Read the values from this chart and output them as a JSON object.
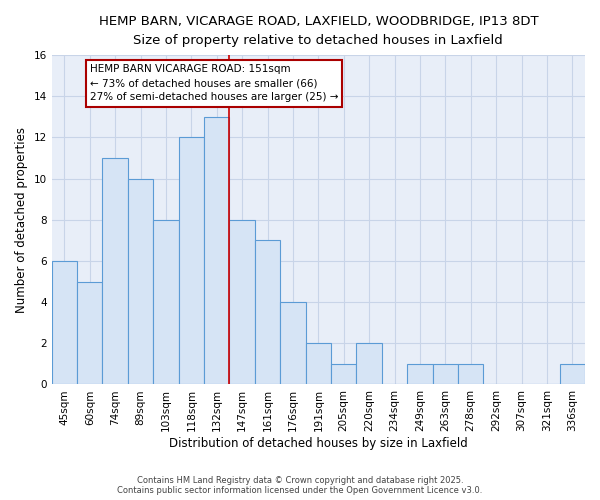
{
  "title1": "HEMP BARN, VICARAGE ROAD, LAXFIELD, WOODBRIDGE, IP13 8DT",
  "title2": "Size of property relative to detached houses in Laxfield",
  "xlabel": "Distribution of detached houses by size in Laxfield",
  "ylabel": "Number of detached properties",
  "categories": [
    "45sqm",
    "60sqm",
    "74sqm",
    "89sqm",
    "103sqm",
    "118sqm",
    "132sqm",
    "147sqm",
    "161sqm",
    "176sqm",
    "191sqm",
    "205sqm",
    "220sqm",
    "234sqm",
    "249sqm",
    "263sqm",
    "278sqm",
    "292sqm",
    "307sqm",
    "321sqm",
    "336sqm"
  ],
  "values": [
    6,
    5,
    11,
    10,
    8,
    12,
    13,
    8,
    7,
    4,
    2,
    1,
    2,
    0,
    1,
    1,
    1,
    0,
    0,
    0,
    1
  ],
  "bar_color": "#d6e4f5",
  "bar_edge_color": "#5b9bd5",
  "highlight_index": 7,
  "highlight_line_color": "#cc0000",
  "annotation_text": "HEMP BARN VICARAGE ROAD: 151sqm\n← 73% of detached houses are smaller (66)\n27% of semi-detached houses are larger (25) →",
  "annotation_box_facecolor": "#ffffff",
  "annotation_box_edgecolor": "#aa0000",
  "ylim": [
    0,
    16
  ],
  "yticks": [
    0,
    2,
    4,
    6,
    8,
    10,
    12,
    14,
    16
  ],
  "footer1": "Contains HM Land Registry data © Crown copyright and database right 2025.",
  "footer2": "Contains public sector information licensed under the Open Government Licence v3.0.",
  "fig_bg_color": "#ffffff",
  "plot_bg_color": "#e8eef8",
  "grid_color": "#c8d4e8",
  "title_fontsize": 9.5,
  "subtitle_fontsize": 9,
  "ylabel_fontsize": 8.5,
  "xlabel_fontsize": 8.5,
  "tick_fontsize": 7.5,
  "annotation_fontsize": 7.5,
  "footer_fontsize": 6
}
